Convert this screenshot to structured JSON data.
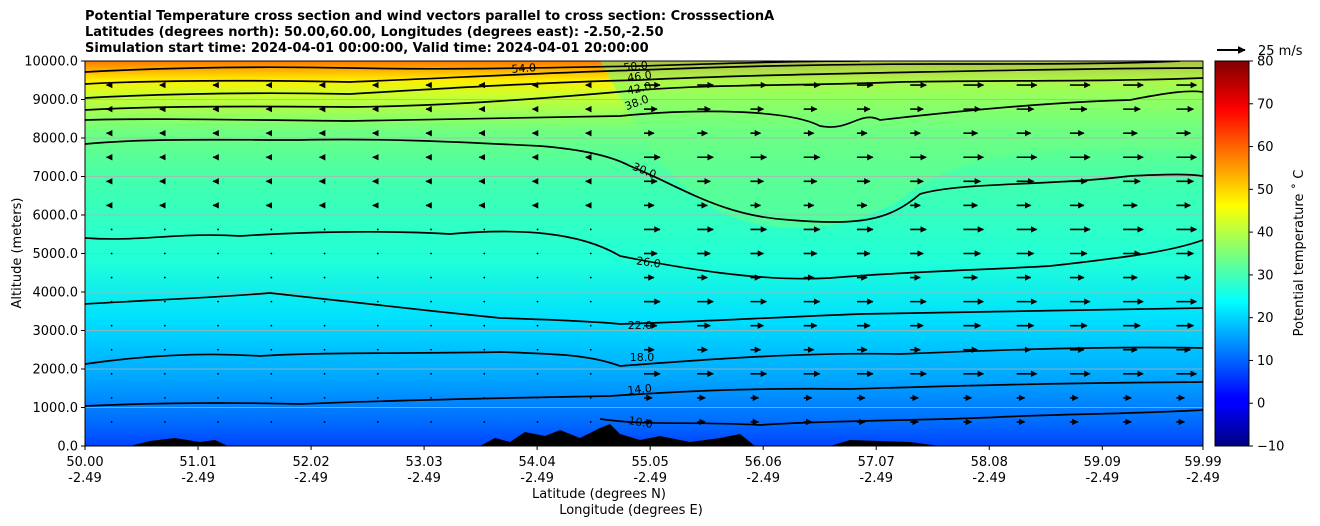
{
  "chart_data": {
    "type": "contour-quiver",
    "title_lines": [
      "Potential Temperature cross section and wind vectors parallel to cross section: CrosssectionA",
      "Latitudes (degrees north): 50.00,60.00, Longitudes (degrees east): -2.50,-2.50",
      "Simulation start time: 2024-04-01 00:00:00, Valid time: 2024-04-01 20:00:00"
    ],
    "xlabel_lines": [
      "Latitude (degrees N)",
      "Longitude (degrees E)"
    ],
    "ylabel": "Altitude (meters)",
    "x_ticks": [
      {
        "lat": "50.00",
        "lon": "-2.49"
      },
      {
        "lat": "51.01",
        "lon": "-2.49"
      },
      {
        "lat": "52.02",
        "lon": "-2.49"
      },
      {
        "lat": "53.03",
        "lon": "-2.49"
      },
      {
        "lat": "54.04",
        "lon": "-2.49"
      },
      {
        "lat": "55.05",
        "lon": "-2.49"
      },
      {
        "lat": "56.06",
        "lon": "-2.49"
      },
      {
        "lat": "57.07",
        "lon": "-2.49"
      },
      {
        "lat": "58.08",
        "lon": "-2.49"
      },
      {
        "lat": "59.09",
        "lon": "-2.49"
      },
      {
        "lat": "59.99",
        "lon": "-2.49"
      }
    ],
    "y_ticks": [
      "0.0",
      "1000.0",
      "2000.0",
      "3000.0",
      "4000.0",
      "5000.0",
      "6000.0",
      "7000.0",
      "8000.0",
      "9000.0",
      "10000.0"
    ],
    "xlim": [
      50.0,
      59.99
    ],
    "ylim": [
      0,
      10000
    ],
    "grid": "horizontal",
    "colorbar": {
      "label": "Potential temperature ˚ C",
      "range": [
        -10,
        80
      ],
      "ticks": [
        "−10",
        "0",
        "10",
        "20",
        "30",
        "40",
        "50",
        "60",
        "70",
        "80"
      ],
      "colormap": "jet"
    },
    "quiver_key": {
      "label": "25 m/s",
      "speed": 25
    },
    "contour_levels": [
      {
        "value": 10,
        "label": "10.0"
      },
      {
        "value": 14,
        "label": "14.0"
      },
      {
        "value": 18,
        "label": "18.0"
      },
      {
        "value": 22,
        "label": "22.0"
      },
      {
        "value": 26,
        "label": "26.0"
      },
      {
        "value": 30,
        "label": "30.0"
      },
      {
        "value": 38,
        "label": "38.0"
      },
      {
        "value": 42,
        "label": "42.0"
      },
      {
        "value": 46,
        "label": "46.0"
      },
      {
        "value": 50,
        "label": "50.0"
      },
      {
        "value": 54,
        "label": "54.0"
      }
    ]
  }
}
